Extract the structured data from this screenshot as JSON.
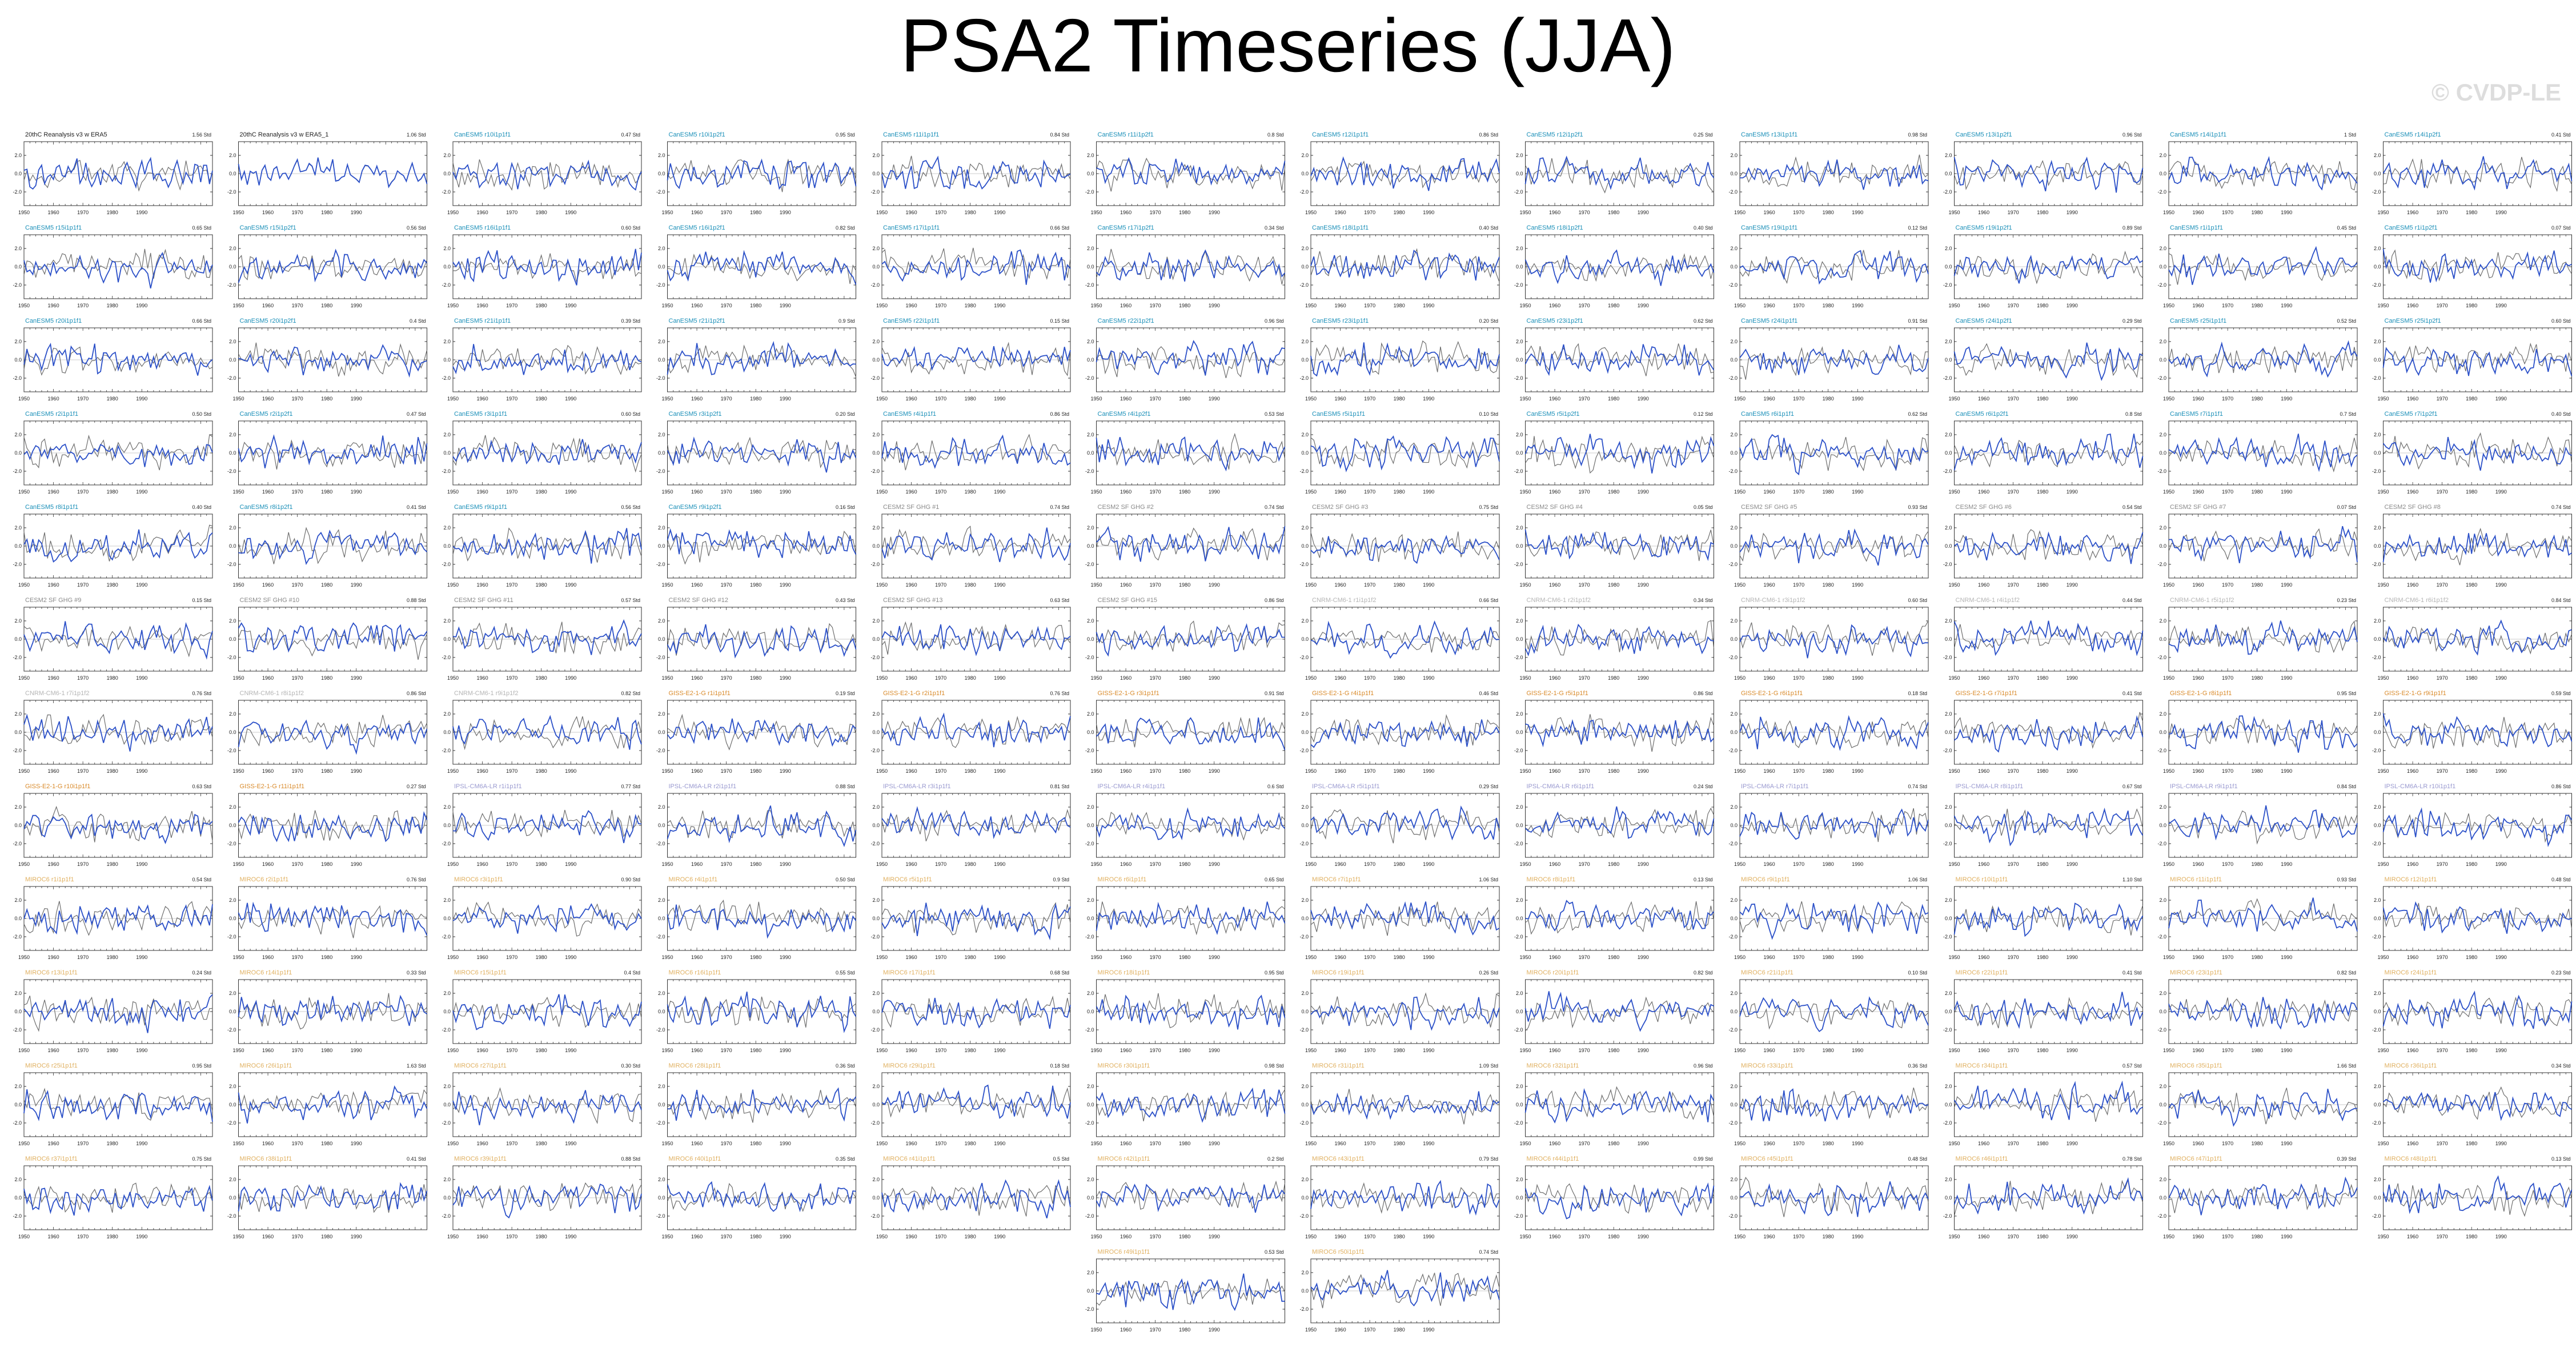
{
  "title": "PSA2 Timeseries (JJA)",
  "watermark": "© CVDP-LE",
  "chart_data": {
    "type": "line",
    "panel_grid": {
      "columns": 12
    },
    "x_ticks": [
      "1950",
      "1960",
      "1970",
      "1980",
      "1990"
    ],
    "y_ticks": [
      "2.0",
      "0.0",
      "-2.0"
    ],
    "xlim": [
      1950,
      2014
    ],
    "ylim": [
      -3.5,
      3.5
    ],
    "line_colors": {
      "model": "#2b50c8",
      "observation": "#6e6e6e"
    },
    "label_colors": {
      "obs": "#222222",
      "canesm5": "#1a8fb8",
      "cesm2": "#8a8a8a",
      "cnrm": "#b5b5b5",
      "giss": "#d98a2a",
      "ipsl": "#9a9ad0",
      "miroc": "#e0b060"
    },
    "panels": [
      {
        "label": "20thC Reanalysis v3 w ERA5",
        "color_key": "obs",
        "value": "1.56 Std"
      },
      {
        "label": "20thC Reanalysis v3 w ERA5_1",
        "color_key": "obs",
        "value": "1.06 Std"
      },
      {
        "label": "CanESM5 r10i1p1f1",
        "color_key": "canesm5",
        "value": "0.47 Std"
      },
      {
        "label": "CanESM5 r10i1p2f1",
        "color_key": "canesm5",
        "value": "0.95 Std"
      },
      {
        "label": "CanESM5 r11i1p1f1",
        "color_key": "canesm5",
        "value": "0.84 Std"
      },
      {
        "label": "CanESM5 r11i1p2f1",
        "color_key": "canesm5",
        "value": "0.8 Std"
      },
      {
        "label": "CanESM5 r12i1p1f1",
        "color_key": "canesm5",
        "value": "0.86 Std"
      },
      {
        "label": "CanESM5 r12i1p2f1",
        "color_key": "canesm5",
        "value": "0.25 Std"
      },
      {
        "label": "CanESM5 r13i1p1f1",
        "color_key": "canesm5",
        "value": "0.98 Std"
      },
      {
        "label": "CanESM5 r13i1p2f1",
        "color_key": "canesm5",
        "value": "0.96 Std"
      },
      {
        "label": "CanESM5 r14i1p1f1",
        "color_key": "canesm5",
        "value": "1 Std"
      },
      {
        "label": "CanESM5 r14i1p2f1",
        "color_key": "canesm5",
        "value": "0.41 Std"
      },
      {
        "label": "CanESM5 r15i1p1f1",
        "color_key": "canesm5",
        "value": "0.65 Std"
      },
      {
        "label": "CanESM5 r15i1p2f1",
        "color_key": "canesm5",
        "value": "0.56 Std"
      },
      {
        "label": "CanESM5 r16i1p1f1",
        "color_key": "canesm5",
        "value": "0.60 Std"
      },
      {
        "label": "CanESM5 r16i1p2f1",
        "color_key": "canesm5",
        "value": "0.82 Std"
      },
      {
        "label": "CanESM5 r17i1p1f1",
        "color_key": "canesm5",
        "value": "0.66 Std"
      },
      {
        "label": "CanESM5 r17i1p2f1",
        "color_key": "canesm5",
        "value": "0.34 Std"
      },
      {
        "label": "CanESM5 r18i1p1f1",
        "color_key": "canesm5",
        "value": "0.40 Std"
      },
      {
        "label": "CanESM5 r18i1p2f1",
        "color_key": "canesm5",
        "value": "0.40 Std"
      },
      {
        "label": "CanESM5 r19i1p1f1",
        "color_key": "canesm5",
        "value": "0.12 Std"
      },
      {
        "label": "CanESM5 r19i1p2f1",
        "color_key": "canesm5",
        "value": "0.89 Std"
      },
      {
        "label": "CanESM5 r1i1p1f1",
        "color_key": "canesm5",
        "value": "0.45 Std"
      },
      {
        "label": "CanESM5 r1i1p2f1",
        "color_key": "canesm5",
        "value": "0.07 Std"
      },
      {
        "label": "CanESM5 r20i1p1f1",
        "color_key": "canesm5",
        "value": "0.66 Std"
      },
      {
        "label": "CanESM5 r20i1p2f1",
        "color_key": "canesm5",
        "value": "0.4 Std"
      },
      {
        "label": "CanESM5 r21i1p1f1",
        "color_key": "canesm5",
        "value": "0.39 Std"
      },
      {
        "label": "CanESM5 r21i1p2f1",
        "color_key": "canesm5",
        "value": "0.9 Std"
      },
      {
        "label": "CanESM5 r22i1p1f1",
        "color_key": "canesm5",
        "value": "0.15 Std"
      },
      {
        "label": "CanESM5 r22i1p2f1",
        "color_key": "canesm5",
        "value": "0.96 Std"
      },
      {
        "label": "CanESM5 r23i1p1f1",
        "color_key": "canesm5",
        "value": "0.20 Std"
      },
      {
        "label": "CanESM5 r23i1p2f1",
        "color_key": "canesm5",
        "value": "0.62 Std"
      },
      {
        "label": "CanESM5 r24i1p1f1",
        "color_key": "canesm5",
        "value": "0.91 Std"
      },
      {
        "label": "CanESM5 r24i1p2f1",
        "color_key": "canesm5",
        "value": "0.29 Std"
      },
      {
        "label": "CanESM5 r25i1p1f1",
        "color_key": "canesm5",
        "value": "0.52 Std"
      },
      {
        "label": "CanESM5 r25i1p2f1",
        "color_key": "canesm5",
        "value": "0.60 Std"
      },
      {
        "label": "CanESM5 r2i1p1f1",
        "color_key": "canesm5",
        "value": "0.50 Std"
      },
      {
        "label": "CanESM5 r2i1p2f1",
        "color_key": "canesm5",
        "value": "0.47 Std"
      },
      {
        "label": "CanESM5 r3i1p1f1",
        "color_key": "canesm5",
        "value": "0.60 Std"
      },
      {
        "label": "CanESM5 r3i1p2f1",
        "color_key": "canesm5",
        "value": "0.20 Std"
      },
      {
        "label": "CanESM5 r4i1p1f1",
        "color_key": "canesm5",
        "value": "0.86 Std"
      },
      {
        "label": "CanESM5 r4i1p2f1",
        "color_key": "canesm5",
        "value": "0.53 Std"
      },
      {
        "label": "CanESM5 r5i1p1f1",
        "color_key": "canesm5",
        "value": "0.10 Std"
      },
      {
        "label": "CanESM5 r5i1p2f1",
        "color_key": "canesm5",
        "value": "0.12 Std"
      },
      {
        "label": "CanESM5 r6i1p1f1",
        "color_key": "canesm5",
        "value": "0.62 Std"
      },
      {
        "label": "CanESM5 r6i1p2f1",
        "color_key": "canesm5",
        "value": "0.8 Std"
      },
      {
        "label": "CanESM5 r7i1p1f1",
        "color_key": "canesm5",
        "value": "0.7 Std"
      },
      {
        "label": "CanESM5 r7i1p2f1",
        "color_key": "canesm5",
        "value": "0.40 Std"
      },
      {
        "label": "CanESM5 r8i1p1f1",
        "color_key": "canesm5",
        "value": "0.40 Std"
      },
      {
        "label": "CanESM5 r8i1p2f1",
        "color_key": "canesm5",
        "value": "0.41 Std"
      },
      {
        "label": "CanESM5 r9i1p1f1",
        "color_key": "canesm5",
        "value": "0.56 Std"
      },
      {
        "label": "CanESM5 r9i1p2f1",
        "color_key": "canesm5",
        "value": "0.16 Std"
      },
      {
        "label": "CESM2 SF GHG #1",
        "color_key": "cesm2",
        "value": "0.74 Std"
      },
      {
        "label": "CESM2 SF GHG #2",
        "color_key": "cesm2",
        "value": "0.74 Std"
      },
      {
        "label": "CESM2 SF GHG #3",
        "color_key": "cesm2",
        "value": "0.75 Std"
      },
      {
        "label": "CESM2 SF GHG #4",
        "color_key": "cesm2",
        "value": "0.05 Std"
      },
      {
        "label": "CESM2 SF GHG #5",
        "color_key": "cesm2",
        "value": "0.93 Std"
      },
      {
        "label": "CESM2 SF GHG #6",
        "color_key": "cesm2",
        "value": "0.54 Std"
      },
      {
        "label": "CESM2 SF GHG #7",
        "color_key": "cesm2",
        "value": "0.07 Std"
      },
      {
        "label": "CESM2 SF GHG #8",
        "color_key": "cesm2",
        "value": "0.74 Std"
      },
      {
        "label": "CESM2 SF GHG #9",
        "color_key": "cesm2",
        "value": "0.15 Std"
      },
      {
        "label": "CESM2 SF GHG #10",
        "color_key": "cesm2",
        "value": "0.88 Std"
      },
      {
        "label": "CESM2 SF GHG #11",
        "color_key": "cesm2",
        "value": "0.57 Std"
      },
      {
        "label": "CESM2 SF GHG #12",
        "color_key": "cesm2",
        "value": "0.43 Std"
      },
      {
        "label": "CESM2 SF GHG #13",
        "color_key": "cesm2",
        "value": "0.63 Std"
      },
      {
        "label": "CESM2 SF GHG #15",
        "color_key": "cesm2",
        "value": "0.86 Std"
      },
      {
        "label": "CNRM-CM6-1 r1i1p1f2",
        "color_key": "cnrm",
        "value": "0.66 Std"
      },
      {
        "label": "CNRM-CM6-1 r2i1p1f2",
        "color_key": "cnrm",
        "value": "0.34 Std"
      },
      {
        "label": "CNRM-CM6-1 r3i1p1f2",
        "color_key": "cnrm",
        "value": "0.60 Std"
      },
      {
        "label": "CNRM-CM6-1 r4i1p1f2",
        "color_key": "cnrm",
        "value": "0.44 Std"
      },
      {
        "label": "CNRM-CM6-1 r5i1p1f2",
        "color_key": "cnrm",
        "value": "0.23 Std"
      },
      {
        "label": "CNRM-CM6-1 r6i1p1f2",
        "color_key": "cnrm",
        "value": "0.84 Std"
      },
      {
        "label": "CNRM-CM6-1 r7i1p1f2",
        "color_key": "cnrm",
        "value": "0.76 Std"
      },
      {
        "label": "CNRM-CM6-1 r8i1p1f2",
        "color_key": "cnrm",
        "value": "0.86 Std"
      },
      {
        "label": "CNRM-CM6-1 r9i1p1f2",
        "color_key": "cnrm",
        "value": "0.82 Std"
      },
      {
        "label": "GISS-E2-1-G r1i1p1f1",
        "color_key": "giss",
        "value": "0.19 Std"
      },
      {
        "label": "GISS-E2-1-G r2i1p1f1",
        "color_key": "giss",
        "value": "0.76 Std"
      },
      {
        "label": "GISS-E2-1-G r3i1p1f1",
        "color_key": "giss",
        "value": "0.91 Std"
      },
      {
        "label": "GISS-E2-1-G r4i1p1f1",
        "color_key": "giss",
        "value": "0.46 Std"
      },
      {
        "label": "GISS-E2-1-G r5i1p1f1",
        "color_key": "giss",
        "value": "0.86 Std"
      },
      {
        "label": "GISS-E2-1-G r6i1p1f1",
        "color_key": "giss",
        "value": "0.18 Std"
      },
      {
        "label": "GISS-E2-1-G r7i1p1f1",
        "color_key": "giss",
        "value": "0.41 Std"
      },
      {
        "label": "GISS-E2-1-G r8i1p1f1",
        "color_key": "giss",
        "value": "0.95 Std"
      },
      {
        "label": "GISS-E2-1-G r9i1p1f1",
        "color_key": "giss",
        "value": "0.59 Std"
      },
      {
        "label": "GISS-E2-1-G r10i1p1f1",
        "color_key": "giss",
        "value": "0.63 Std"
      },
      {
        "label": "GISS-E2-1-G r11i1p1f1",
        "color_key": "giss",
        "value": "0.27 Std"
      },
      {
        "label": "IPSL-CM6A-LR r1i1p1f1",
        "color_key": "ipsl",
        "value": "0.77 Std"
      },
      {
        "label": "IPSL-CM6A-LR r2i1p1f1",
        "color_key": "ipsl",
        "value": "0.88 Std"
      },
      {
        "label": "IPSL-CM6A-LR r3i1p1f1",
        "color_key": "ipsl",
        "value": "0.81 Std"
      },
      {
        "label": "IPSL-CM6A-LR r4i1p1f1",
        "color_key": "ipsl",
        "value": "0.6 Std"
      },
      {
        "label": "IPSL-CM6A-LR r5i1p1f1",
        "color_key": "ipsl",
        "value": "0.29 Std"
      },
      {
        "label": "IPSL-CM6A-LR r6i1p1f1",
        "color_key": "ipsl",
        "value": "0.24 Std"
      },
      {
        "label": "IPSL-CM6A-LR r7i1p1f1",
        "color_key": "ipsl",
        "value": "0.74 Std"
      },
      {
        "label": "IPSL-CM6A-LR r8i1p1f1",
        "color_key": "ipsl",
        "value": "0.67 Std"
      },
      {
        "label": "IPSL-CM6A-LR r9i1p1f1",
        "color_key": "ipsl",
        "value": "0.84 Std"
      },
      {
        "label": "IPSL-CM6A-LR r10i1p1f1",
        "color_key": "ipsl",
        "value": "0.86 Std"
      },
      {
        "label": "MIROC6 r1i1p1f1",
        "color_key": "miroc",
        "value": "0.54 Std"
      },
      {
        "label": "MIROC6 r2i1p1f1",
        "color_key": "miroc",
        "value": "0.76 Std"
      },
      {
        "label": "MIROC6 r3i1p1f1",
        "color_key": "miroc",
        "value": "0.90 Std"
      },
      {
        "label": "MIROC6 r4i1p1f1",
        "color_key": "miroc",
        "value": "0.50 Std"
      },
      {
        "label": "MIROC6 r5i1p1f1",
        "color_key": "miroc",
        "value": "0.9 Std"
      },
      {
        "label": "MIROC6 r6i1p1f1",
        "color_key": "miroc",
        "value": "0.65 Std"
      },
      {
        "label": "MIROC6 r7i1p1f1",
        "color_key": "miroc",
        "value": "1.06 Std"
      },
      {
        "label": "MIROC6 r8i1p1f1",
        "color_key": "miroc",
        "value": "0.13 Std"
      },
      {
        "label": "MIROC6 r9i1p1f1",
        "color_key": "miroc",
        "value": "1.06 Std"
      },
      {
        "label": "MIROC6 r10i1p1f1",
        "color_key": "miroc",
        "value": "1.10 Std"
      },
      {
        "label": "MIROC6 r11i1p1f1",
        "color_key": "miroc",
        "value": "0.93 Std"
      },
      {
        "label": "MIROC6 r12i1p1f1",
        "color_key": "miroc",
        "value": "0.48 Std"
      },
      {
        "label": "MIROC6 r13i1p1f1",
        "color_key": "miroc",
        "value": "0.24 Std"
      },
      {
        "label": "MIROC6 r14i1p1f1",
        "color_key": "miroc",
        "value": "0.33 Std"
      },
      {
        "label": "MIROC6 r15i1p1f1",
        "color_key": "miroc",
        "value": "0.4 Std"
      },
      {
        "label": "MIROC6 r16i1p1f1",
        "color_key": "miroc",
        "value": "0.55 Std"
      },
      {
        "label": "MIROC6 r17i1p1f1",
        "color_key": "miroc",
        "value": "0.68 Std"
      },
      {
        "label": "MIROC6 r18i1p1f1",
        "color_key": "miroc",
        "value": "0.95 Std"
      },
      {
        "label": "MIROC6 r19i1p1f1",
        "color_key": "miroc",
        "value": "0.26 Std"
      },
      {
        "label": "MIROC6 r20i1p1f1",
        "color_key": "miroc",
        "value": "0.82 Std"
      },
      {
        "label": "MIROC6 r21i1p1f1",
        "color_key": "miroc",
        "value": "0.10 Std"
      },
      {
        "label": "MIROC6 r22i1p1f1",
        "color_key": "miroc",
        "value": "0.41 Std"
      },
      {
        "label": "MIROC6 r23i1p1f1",
        "color_key": "miroc",
        "value": "0.82 Std"
      },
      {
        "label": "MIROC6 r24i1p1f1",
        "color_key": "miroc",
        "value": "0.23 Std"
      },
      {
        "label": "MIROC6 r25i1p1f1",
        "color_key": "miroc",
        "value": "0.95 Std"
      },
      {
        "label": "MIROC6 r26i1p1f1",
        "color_key": "miroc",
        "value": "1.63 Std"
      },
      {
        "label": "MIROC6 r27i1p1f1",
        "color_key": "miroc",
        "value": "0.30 Std"
      },
      {
        "label": "MIROC6 r28i1p1f1",
        "color_key": "miroc",
        "value": "0.36 Std"
      },
      {
        "label": "MIROC6 r29i1p1f1",
        "color_key": "miroc",
        "value": "0.18 Std"
      },
      {
        "label": "MIROC6 r30i1p1f1",
        "color_key": "miroc",
        "value": "0.98 Std"
      },
      {
        "label": "MIROC6 r31i1p1f1",
        "color_key": "miroc",
        "value": "1.09 Std"
      },
      {
        "label": "MIROC6 r32i1p1f1",
        "color_key": "miroc",
        "value": "0.96 Std"
      },
      {
        "label": "MIROC6 r33i1p1f1",
        "color_key": "miroc",
        "value": "0.36 Std"
      },
      {
        "label": "MIROC6 r34i1p1f1",
        "color_key": "miroc",
        "value": "0.57 Std"
      },
      {
        "label": "MIROC6 r35i1p1f1",
        "color_key": "miroc",
        "value": "1.66 Std"
      },
      {
        "label": "MIROC6 r36i1p1f1",
        "color_key": "miroc",
        "value": "0.34 Std"
      },
      {
        "label": "MIROC6 r37i1p1f1",
        "color_key": "miroc",
        "value": "0.75 Std"
      },
      {
        "label": "MIROC6 r38i1p1f1",
        "color_key": "miroc",
        "value": "0.41 Std"
      },
      {
        "label": "MIROC6 r39i1p1f1",
        "color_key": "miroc",
        "value": "0.88 Std"
      },
      {
        "label": "MIROC6 r40i1p1f1",
        "color_key": "miroc",
        "value": "0.35 Std"
      },
      {
        "label": "MIROC6 r41i1p1f1",
        "color_key": "miroc",
        "value": "0.5 Std"
      },
      {
        "label": "MIROC6 r42i1p1f1",
        "color_key": "miroc",
        "value": "0.2 Std"
      },
      {
        "label": "MIROC6 r43i1p1f1",
        "color_key": "miroc",
        "value": "0.79 Std"
      },
      {
        "label": "MIROC6 r44i1p1f1",
        "color_key": "miroc",
        "value": "0.99 Std"
      },
      {
        "label": "MIROC6 r45i1p1f1",
        "color_key": "miroc",
        "value": "0.48 Std"
      },
      {
        "label": "MIROC6 r46i1p1f1",
        "color_key": "miroc",
        "value": "0.78 Std"
      },
      {
        "label": "MIROC6 r47i1p1f1",
        "color_key": "miroc",
        "value": "0.39 Std"
      },
      {
        "label": "MIROC6 r48i1p1f1",
        "color_key": "miroc",
        "value": "0.13 Std"
      },
      {
        "label": "MIROC6 r49i1p1f1",
        "color_key": "miroc",
        "value": "0.53 Std"
      },
      {
        "label": "MIROC6 r50i1p1f1",
        "color_key": "miroc",
        "value": "0.74 Std"
      }
    ]
  }
}
